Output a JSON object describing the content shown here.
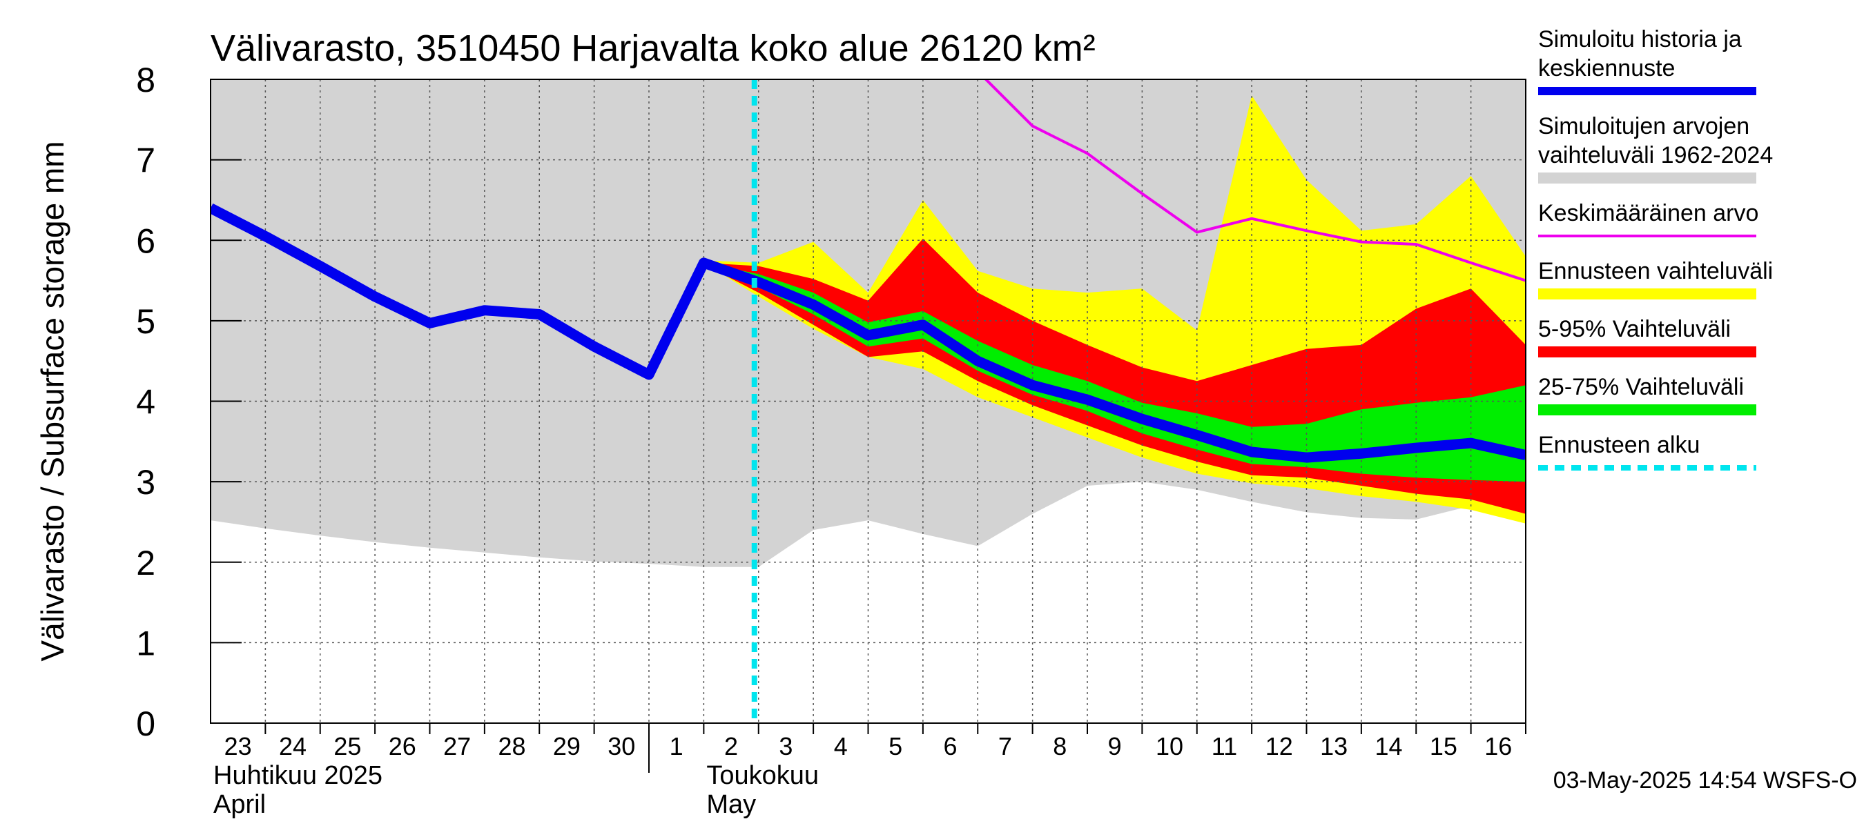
{
  "chart_data": {
    "type": "area",
    "title": "Välivarasto, 3510450 Harjavalta koko alue 26120 km²",
    "ylabel": "Välivarasto / Subsurface storage  mm",
    "ylim": [
      0,
      8
    ],
    "yticks": [
      0,
      1,
      2,
      3,
      4,
      5,
      6,
      7,
      8
    ],
    "grid": true,
    "legend_position": "right",
    "x_start": "2025-04-23",
    "x_end": "2025-05-17",
    "day_tick_labels": [
      "23",
      "24",
      "25",
      "26",
      "27",
      "28",
      "29",
      "30",
      "1",
      "2",
      "3",
      "4",
      "5",
      "6",
      "7",
      "8",
      "9",
      "10",
      "11",
      "12",
      "13",
      "14",
      "15",
      "16"
    ],
    "month_labels": [
      {
        "fi": "Huhtikuu  2025",
        "en": "April",
        "date": "2025-04-23"
      },
      {
        "fi": "Toukokuu",
        "en": "May",
        "date": "2025-05-02"
      }
    ],
    "month_boundary_date": "2025-05-01",
    "forecast_start_date": "2025-05-03",
    "footer": "03-May-2025 14:54 WSFS-O",
    "colors": {
      "history_range": "#d3d3d3",
      "forecast_range": "#ffff00",
      "p5_95": "#ff0000",
      "p25_75": "#00ee00",
      "median": "#0000ee",
      "mean": "#ee00ee",
      "forecast_start": "#00e5ee"
    },
    "series": [
      {
        "name": "Simuloitujen arvojen vaihteluväli 1962-2024",
        "kind": "band",
        "x": [
          "2025-04-23",
          "2025-04-24",
          "2025-04-25",
          "2025-04-26",
          "2025-04-27",
          "2025-04-28",
          "2025-04-29",
          "2025-04-30",
          "2025-05-01",
          "2025-05-02",
          "2025-05-03",
          "2025-05-04",
          "2025-05-05",
          "2025-05-06",
          "2025-05-07",
          "2025-05-08",
          "2025-05-09",
          "2025-05-10",
          "2025-05-11",
          "2025-05-12",
          "2025-05-13",
          "2025-05-14",
          "2025-05-15",
          "2025-05-16",
          "2025-05-17"
        ],
        "lower": [
          2.52,
          2.42,
          2.33,
          2.25,
          2.18,
          2.12,
          2.06,
          2.01,
          1.98,
          1.94,
          1.94,
          2.4,
          2.52,
          2.35,
          2.2,
          2.6,
          2.95,
          3.0,
          2.9,
          2.75,
          2.62,
          2.55,
          2.53,
          2.7,
          2.78
        ],
        "upper": [
          8,
          8,
          8,
          8,
          8,
          8,
          8,
          8,
          8,
          8,
          8,
          8,
          8,
          8,
          8,
          8,
          8,
          8,
          8,
          8,
          8,
          8,
          8,
          8,
          8
        ]
      },
      {
        "name": "Ennusteen vaihteluväli",
        "kind": "band",
        "x": [
          "2025-05-02",
          "2025-05-03",
          "2025-05-04",
          "2025-05-05",
          "2025-05-06",
          "2025-05-07",
          "2025-05-08",
          "2025-05-09",
          "2025-05-10",
          "2025-05-11",
          "2025-05-12",
          "2025-05-13",
          "2025-05-14",
          "2025-05-15",
          "2025-05-16",
          "2025-05-17"
        ],
        "lower": [
          5.72,
          5.3,
          4.9,
          4.55,
          4.4,
          4.05,
          3.8,
          3.55,
          3.3,
          3.1,
          2.98,
          2.92,
          2.82,
          2.75,
          2.65,
          2.48
        ],
        "upper": [
          5.75,
          5.72,
          5.98,
          5.35,
          6.5,
          5.62,
          5.4,
          5.35,
          5.4,
          4.88,
          7.8,
          6.75,
          6.12,
          6.2,
          6.8,
          5.8
        ]
      },
      {
        "name": "5-95% Vaihteluväli",
        "kind": "band",
        "x": [
          "2025-05-02",
          "2025-05-03",
          "2025-05-04",
          "2025-05-05",
          "2025-05-06",
          "2025-05-07",
          "2025-05-08",
          "2025-05-09",
          "2025-05-10",
          "2025-05-11",
          "2025-05-12",
          "2025-05-13",
          "2025-05-14",
          "2025-05-15",
          "2025-05-16",
          "2025-05-17"
        ],
        "lower": [
          5.7,
          5.35,
          4.95,
          4.55,
          4.62,
          4.25,
          3.95,
          3.7,
          3.45,
          3.25,
          3.08,
          3.05,
          2.95,
          2.85,
          2.78,
          2.6
        ],
        "upper": [
          5.72,
          5.68,
          5.52,
          5.25,
          6.02,
          5.35,
          5.0,
          4.7,
          4.42,
          4.25,
          4.45,
          4.65,
          4.7,
          5.15,
          5.4,
          4.7
        ]
      },
      {
        "name": "25-75% Vaihteluväli",
        "kind": "band",
        "x": [
          "2025-05-02",
          "2025-05-03",
          "2025-05-04",
          "2025-05-05",
          "2025-05-06",
          "2025-05-07",
          "2025-05-08",
          "2025-05-09",
          "2025-05-10",
          "2025-05-11",
          "2025-05-12",
          "2025-05-13",
          "2025-05-14",
          "2025-05-15",
          "2025-05-16",
          "2025-05-17"
        ],
        "lower": [
          5.7,
          5.42,
          5.08,
          4.68,
          4.78,
          4.38,
          4.08,
          3.88,
          3.6,
          3.4,
          3.22,
          3.18,
          3.1,
          3.05,
          3.02,
          3.0
        ],
        "upper": [
          5.72,
          5.58,
          5.35,
          4.98,
          5.12,
          4.75,
          4.45,
          4.25,
          3.98,
          3.85,
          3.68,
          3.72,
          3.9,
          3.98,
          4.05,
          4.2
        ]
      },
      {
        "name": "Simuloitu historia ja keskiennuste",
        "kind": "line",
        "x": [
          "2025-04-23",
          "2025-04-24",
          "2025-04-25",
          "2025-04-26",
          "2025-04-27",
          "2025-04-28",
          "2025-04-29",
          "2025-04-30",
          "2025-05-01",
          "2025-05-02",
          "2025-05-03",
          "2025-05-04",
          "2025-05-05",
          "2025-05-06",
          "2025-05-07",
          "2025-05-08",
          "2025-05-09",
          "2025-05-10",
          "2025-05-11",
          "2025-05-12",
          "2025-05-13",
          "2025-05-14",
          "2025-05-15",
          "2025-05-16",
          "2025-05-17"
        ],
        "values": [
          6.4,
          6.05,
          5.68,
          5.3,
          4.97,
          5.13,
          5.08,
          4.68,
          4.33,
          5.72,
          5.48,
          5.2,
          4.82,
          4.95,
          4.5,
          4.2,
          4.02,
          3.78,
          3.58,
          3.37,
          3.3,
          3.35,
          3.42,
          3.48,
          3.33
        ]
      },
      {
        "name": "Keskimääräinen arvo",
        "kind": "line",
        "x": [
          "2025-05-07",
          "2025-05-08",
          "2025-05-09",
          "2025-05-10",
          "2025-05-11",
          "2025-05-12",
          "2025-05-13",
          "2025-05-14",
          "2025-05-15",
          "2025-05-16",
          "2025-05-17"
        ],
        "values": [
          8.1,
          7.42,
          7.08,
          6.58,
          6.1,
          6.27,
          6.12,
          5.98,
          5.95,
          5.72,
          5.5
        ]
      }
    ],
    "legend": [
      {
        "label": "Simuloitu historia ja keskiennuste",
        "swatch": "median",
        "style": "line"
      },
      {
        "label": "Simuloitujen arvojen vaihteluväli 1962-2024",
        "swatch": "history_range",
        "style": "bar"
      },
      {
        "label": "Keskimääräinen arvo",
        "swatch": "mean",
        "style": "thin"
      },
      {
        "label": "Ennusteen vaihteluväli",
        "swatch": "forecast_range",
        "style": "bar"
      },
      {
        "label": "5-95% Vaihteluväli",
        "swatch": "p5_95",
        "style": "bar"
      },
      {
        "label": "25-75% Vaihteluväli",
        "swatch": "p25_75",
        "style": "bar"
      },
      {
        "label": "Ennusteen alku",
        "swatch": "forecast_start",
        "style": "dashed"
      }
    ]
  }
}
